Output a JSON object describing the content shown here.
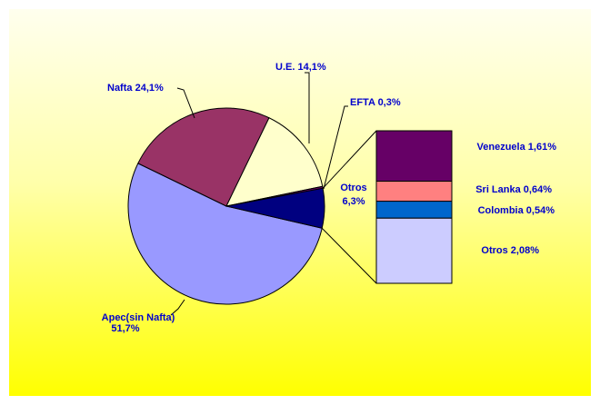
{
  "chart_data": {
    "type": "pie-of-bar",
    "categories": [
      "Apec(sin Nafta)",
      "Nafta",
      "U.E.",
      "EFTA",
      "Otros"
    ],
    "values": [
      51.7,
      24.1,
      14.1,
      0.3,
      6.3
    ],
    "value_labels": [
      "51,7%",
      "24,1%",
      "14,1%",
      "0,3%",
      "6,3%"
    ],
    "colors": [
      "#9999ff",
      "#993366",
      "#ffffcc",
      "#660066",
      "#000080"
    ],
    "bar": {
      "categories": [
        "Venezuela",
        "Sri Lanka",
        "Colombia",
        "Otros"
      ],
      "values": [
        1.61,
        0.64,
        0.54,
        2.08
      ],
      "value_labels": [
        "1,61%",
        "0,64%",
        "0,54%",
        "2,08%"
      ],
      "colors": [
        "#660066",
        "#ff8080",
        "#0066cc",
        "#ccccff"
      ]
    }
  }
}
